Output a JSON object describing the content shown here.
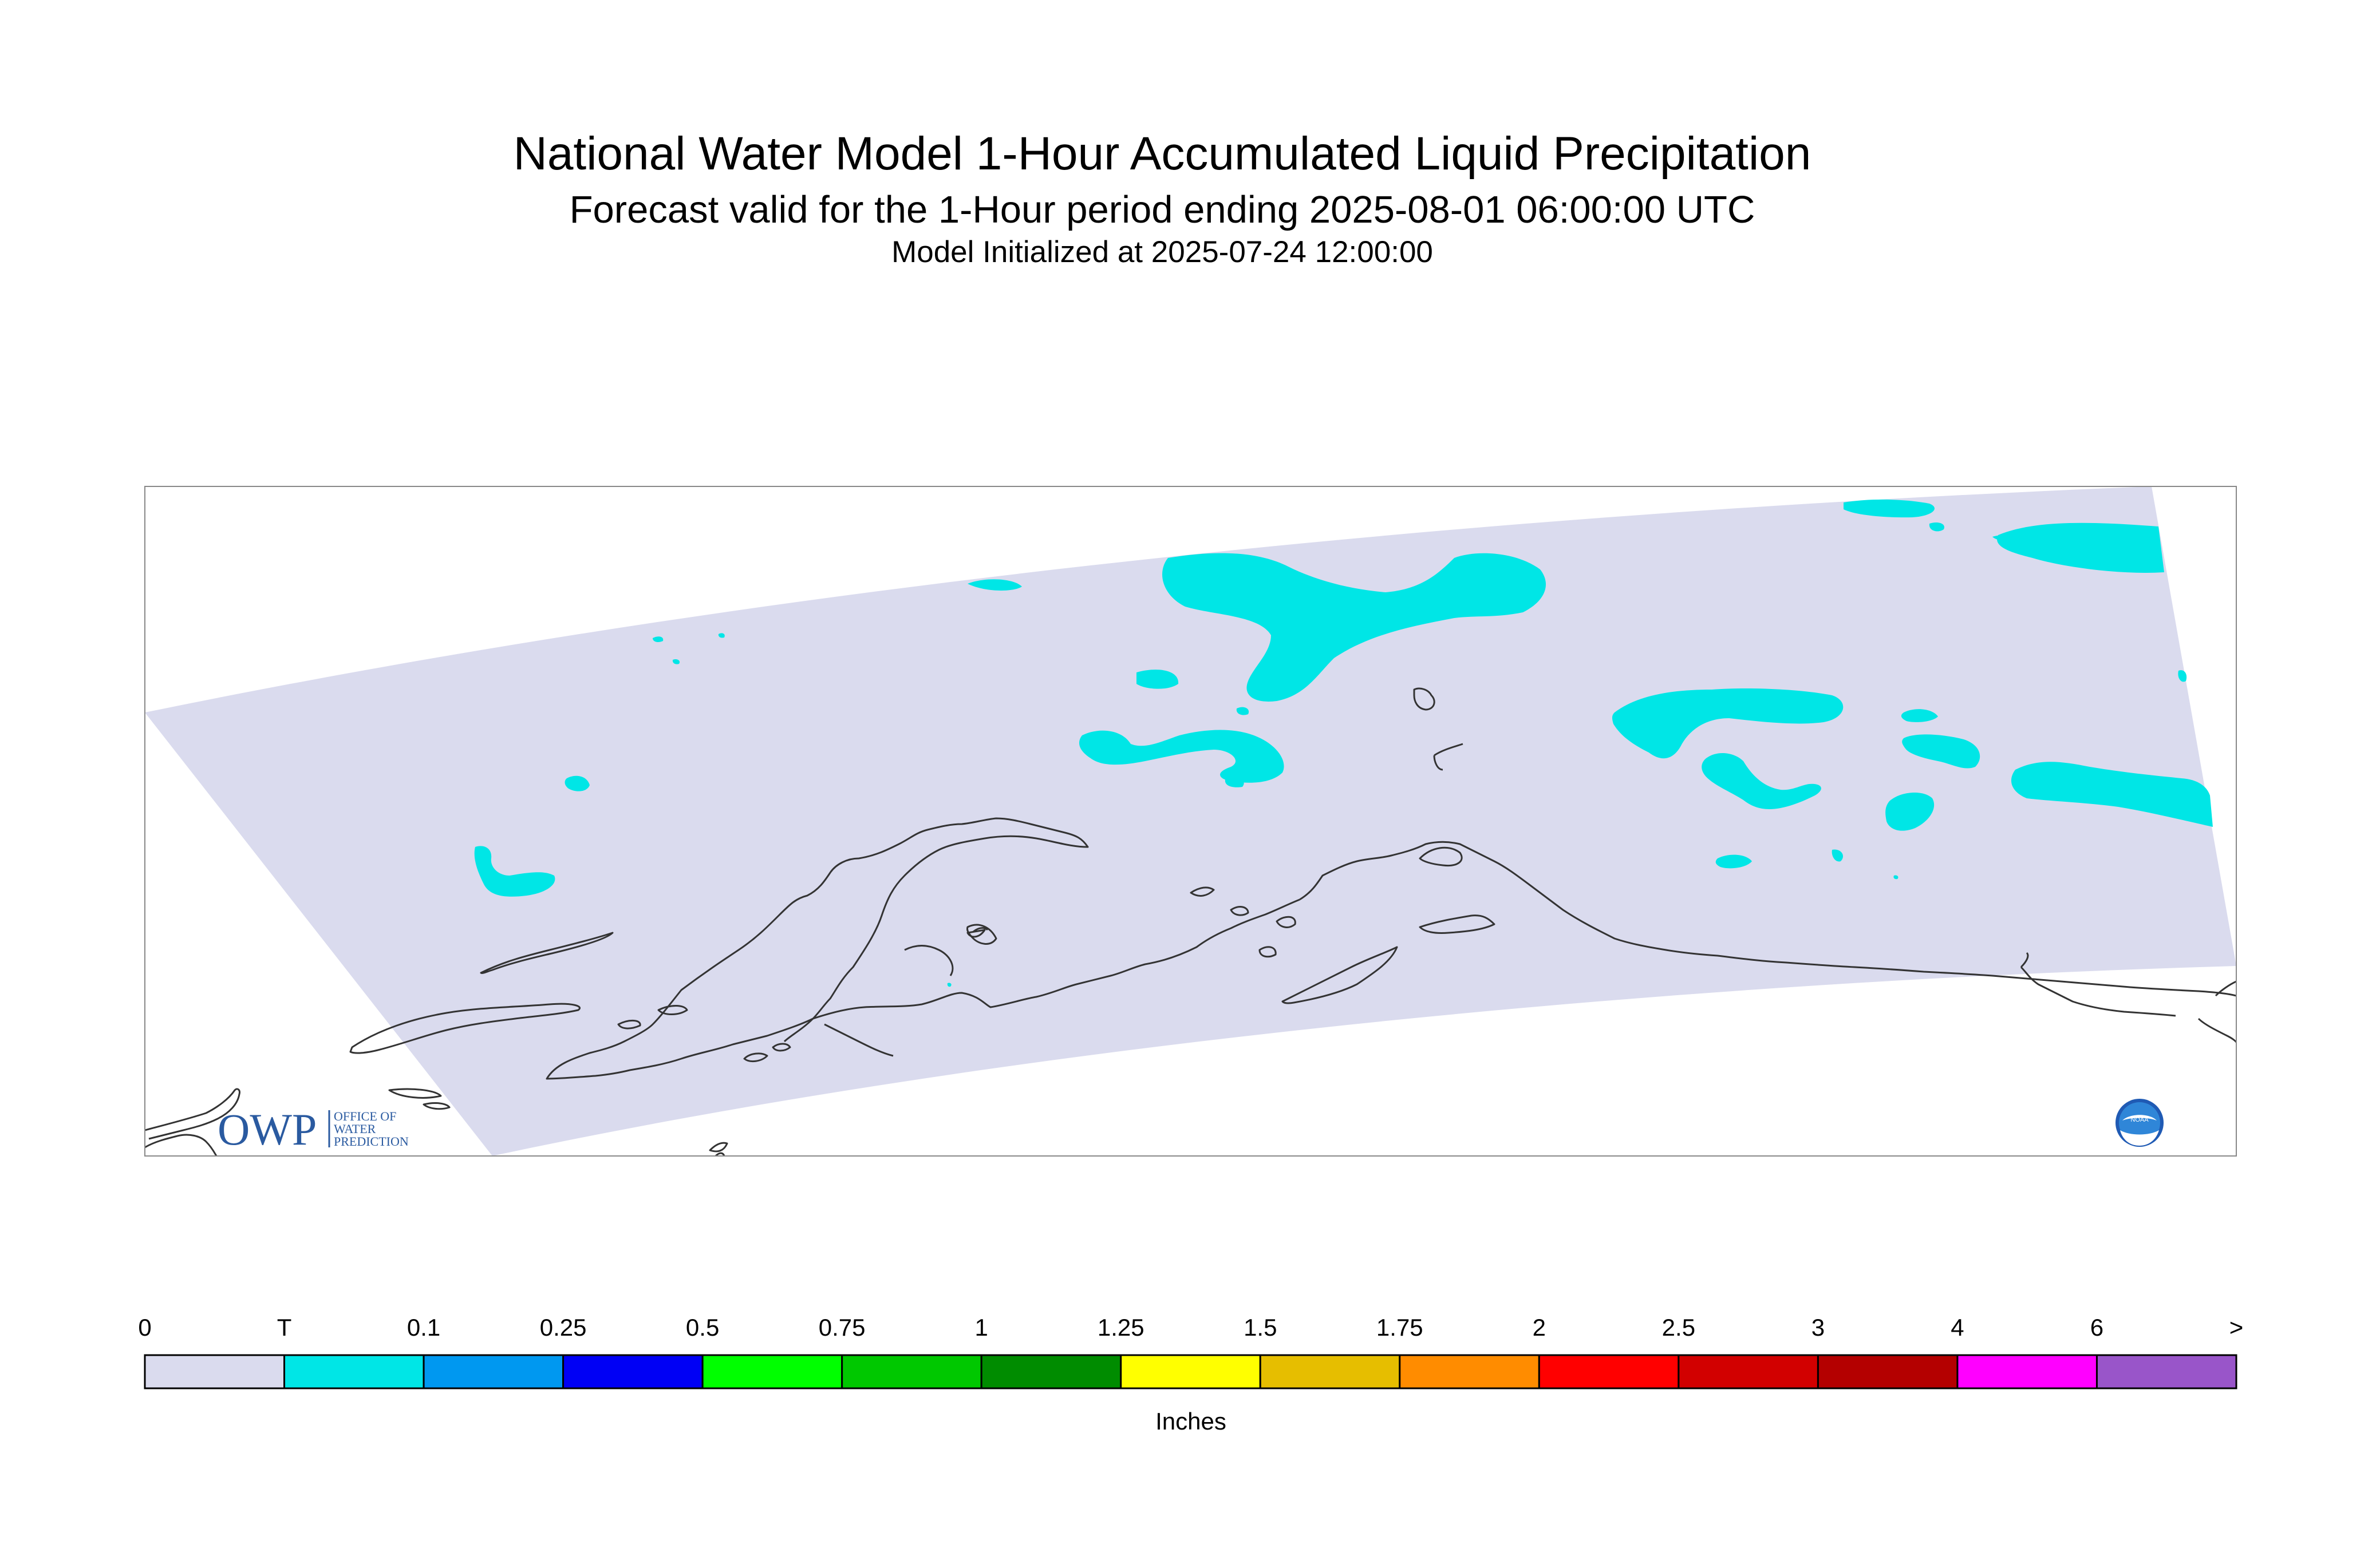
{
  "header": {
    "title": "National Water Model 1-Hour Accumulated Liquid Precipitation",
    "subtitle": "Forecast valid for the 1-Hour period ending 2025-08-01 06:00:00 UTC",
    "init": "Model Initialized at 2025-07-24 12:00:00"
  },
  "logos": {
    "owp": {
      "mark": "OWP",
      "text": [
        "OFFICE OF",
        "WATER",
        "PREDICTION"
      ]
    },
    "noaa": {
      "text": "NOAA"
    }
  },
  "colors": {
    "domain": "#dadbee",
    "coast": "#333333",
    "frame": "#888888",
    "precip": "#00e6e6"
  },
  "legend": {
    "units": "Inches",
    "labels": [
      "0",
      "T",
      "0.1",
      "0.25",
      "0.5",
      "0.75",
      "1",
      "1.25",
      "1.5",
      "1.75",
      "2",
      "2.5",
      "3",
      "4",
      "6",
      ">"
    ],
    "colors": [
      "#dadbee",
      "#00e6e6",
      "#0098f0",
      "#0000f5",
      "#00ff00",
      "#00c800",
      "#008c00",
      "#ffff00",
      "#e6be00",
      "#ff8c00",
      "#ff0000",
      "#d20000",
      "#b40000",
      "#ff00ff",
      "#9955c9"
    ]
  }
}
